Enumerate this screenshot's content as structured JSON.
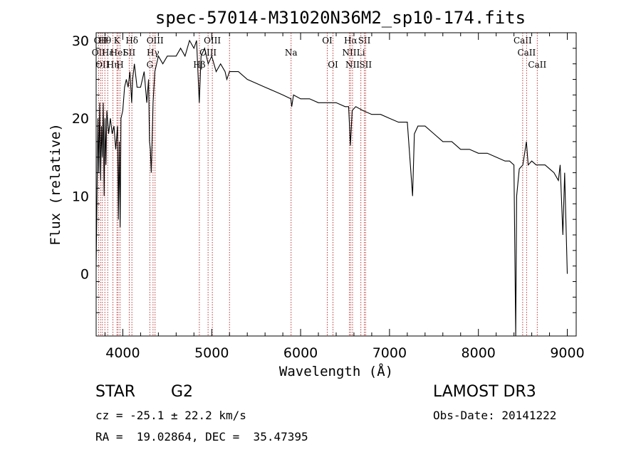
{
  "chart_data": {
    "type": "line",
    "title": "spec-57014-M31020N36M2_sp10-174.fits",
    "xlabel": "Wavelength (Å)",
    "ylabel": "Flux (relative)",
    "xlim": [
      3700,
      9100
    ],
    "ylim": [
      -8,
      31
    ],
    "xticks": [
      4000,
      5000,
      6000,
      7000,
      8000,
      9000
    ],
    "yticks": [
      0,
      10,
      20,
      30
    ],
    "series": [
      {
        "name": "spectrum",
        "points": [
          [
            3700,
            1
          ],
          [
            3710,
            10
          ],
          [
            3720,
            20
          ],
          [
            3730,
            13
          ],
          [
            3740,
            22
          ],
          [
            3750,
            12
          ],
          [
            3760,
            19
          ],
          [
            3770,
            15
          ],
          [
            3780,
            22
          ],
          [
            3790,
            10
          ],
          [
            3800,
            20
          ],
          [
            3810,
            14
          ],
          [
            3820,
            21
          ],
          [
            3840,
            18
          ],
          [
            3860,
            20
          ],
          [
            3880,
            18
          ],
          [
            3900,
            19
          ],
          [
            3920,
            16
          ],
          [
            3940,
            19
          ],
          [
            3950,
            7
          ],
          [
            3960,
            17
          ],
          [
            3970,
            6
          ],
          [
            3980,
            20
          ],
          [
            4000,
            21
          ],
          [
            4020,
            24
          ],
          [
            4040,
            25
          ],
          [
            4060,
            24
          ],
          [
            4080,
            26
          ],
          [
            4100,
            22
          ],
          [
            4110,
            25
          ],
          [
            4130,
            27
          ],
          [
            4160,
            24
          ],
          [
            4200,
            24
          ],
          [
            4240,
            26
          ],
          [
            4270,
            22
          ],
          [
            4290,
            25
          ],
          [
            4300,
            17
          ],
          [
            4310,
            16
          ],
          [
            4320,
            13
          ],
          [
            4340,
            22
          ],
          [
            4360,
            26
          ],
          [
            4400,
            28
          ],
          [
            4450,
            27
          ],
          [
            4500,
            28
          ],
          [
            4550,
            28
          ],
          [
            4600,
            28
          ],
          [
            4650,
            29
          ],
          [
            4700,
            28
          ],
          [
            4750,
            30
          ],
          [
            4800,
            29
          ],
          [
            4830,
            30
          ],
          [
            4860,
            22
          ],
          [
            4880,
            28
          ],
          [
            4920,
            29
          ],
          [
            4960,
            27
          ],
          [
            5000,
            28
          ],
          [
            5050,
            26
          ],
          [
            5100,
            27
          ],
          [
            5150,
            26
          ],
          [
            5170,
            25
          ],
          [
            5200,
            26
          ],
          [
            5300,
            26
          ],
          [
            5400,
            25
          ],
          [
            5500,
            24.5
          ],
          [
            5600,
            24
          ],
          [
            5700,
            23.5
          ],
          [
            5800,
            23
          ],
          [
            5890,
            22.5
          ],
          [
            5900,
            21.5
          ],
          [
            5920,
            23
          ],
          [
            6000,
            22.5
          ],
          [
            6100,
            22.5
          ],
          [
            6200,
            22
          ],
          [
            6300,
            22
          ],
          [
            6400,
            22
          ],
          [
            6500,
            21.5
          ],
          [
            6540,
            21.5
          ],
          [
            6560,
            16.5
          ],
          [
            6580,
            21
          ],
          [
            6620,
            21.5
          ],
          [
            6700,
            21
          ],
          [
            6800,
            20.5
          ],
          [
            6900,
            20.5
          ],
          [
            7000,
            20
          ],
          [
            7100,
            19.5
          ],
          [
            7200,
            19.5
          ],
          [
            7260,
            10
          ],
          [
            7280,
            18
          ],
          [
            7320,
            19
          ],
          [
            7400,
            19
          ],
          [
            7500,
            18
          ],
          [
            7600,
            17
          ],
          [
            7700,
            17
          ],
          [
            7800,
            16
          ],
          [
            7900,
            16
          ],
          [
            8000,
            15.5
          ],
          [
            8100,
            15.5
          ],
          [
            8200,
            15
          ],
          [
            8300,
            14.5
          ],
          [
            8350,
            14.5
          ],
          [
            8400,
            14
          ],
          [
            8420,
            -8
          ],
          [
            8430,
            10
          ],
          [
            8460,
            13.5
          ],
          [
            8500,
            14
          ],
          [
            8540,
            17
          ],
          [
            8560,
            14
          ],
          [
            8600,
            14.5
          ],
          [
            8650,
            14
          ],
          [
            8700,
            14
          ],
          [
            8750,
            14
          ],
          [
            8800,
            13.5
          ],
          [
            8850,
            13
          ],
          [
            8900,
            12
          ],
          [
            8920,
            14
          ],
          [
            8950,
            5
          ],
          [
            8970,
            13
          ],
          [
            9000,
            0
          ]
        ]
      }
    ],
    "line_markers": [
      {
        "x": 3727,
        "row": 2,
        "label": "OII"
      },
      {
        "x": 3750,
        "row": 1,
        "label": "OII"
      },
      {
        "x": 3770,
        "row": 3,
        "label": "OII"
      },
      {
        "x": 3798,
        "row": 1,
        "label": "Hθ"
      },
      {
        "x": 3830,
        "row": 2,
        "label": "Hε"
      },
      {
        "x": 3889,
        "row": 3,
        "label": "Hη"
      },
      {
        "x": 3934,
        "row": 1,
        "label": "K"
      },
      {
        "x": 3947,
        "row": 2,
        "label": "HeI"
      },
      {
        "x": 3968,
        "row": 3,
        "label": "H"
      },
      {
        "x": 4072,
        "row": 2,
        "label": "SII"
      },
      {
        "x": 4102,
        "row": 1,
        "label": "Hδ"
      },
      {
        "x": 4304,
        "row": 3,
        "label": "G"
      },
      {
        "x": 4340,
        "row": 2,
        "label": "Hγ"
      },
      {
        "x": 4363,
        "row": 1,
        "label": "OIII"
      },
      {
        "x": 4861,
        "row": 3,
        "label": "Hβ"
      },
      {
        "x": 4959,
        "row": 2,
        "label": "OIII"
      },
      {
        "x": 5007,
        "row": 1,
        "label": "OIII"
      },
      {
        "x": 5200,
        "row": 0,
        "label": ""
      },
      {
        "x": 5893,
        "row": 2,
        "label": "Na"
      },
      {
        "x": 6300,
        "row": 1,
        "label": "OI"
      },
      {
        "x": 6364,
        "row": 3,
        "label": "OI"
      },
      {
        "x": 6548,
        "row": 2,
        "label": "NII"
      },
      {
        "x": 6563,
        "row": 1,
        "label": "Hα"
      },
      {
        "x": 6584,
        "row": 3,
        "label": "NII"
      },
      {
        "x": 6678,
        "row": 2,
        "label": "Li"
      },
      {
        "x": 6717,
        "row": 1,
        "label": "SII"
      },
      {
        "x": 6731,
        "row": 3,
        "label": "SII"
      },
      {
        "x": 8498,
        "row": 1,
        "label": "CaII"
      },
      {
        "x": 8542,
        "row": 2,
        "label": "CaII"
      },
      {
        "x": 8662,
        "row": 3,
        "label": "CaII"
      }
    ]
  },
  "info": {
    "class": "STAR",
    "subclass": "G2",
    "survey": "LAMOST DR3",
    "cz": "cz = -25.1 ± 22.2 km/s",
    "obs_date": "Obs-Date: 20141222",
    "coords": "RA =  19.02864, DEC =  35.47395"
  }
}
